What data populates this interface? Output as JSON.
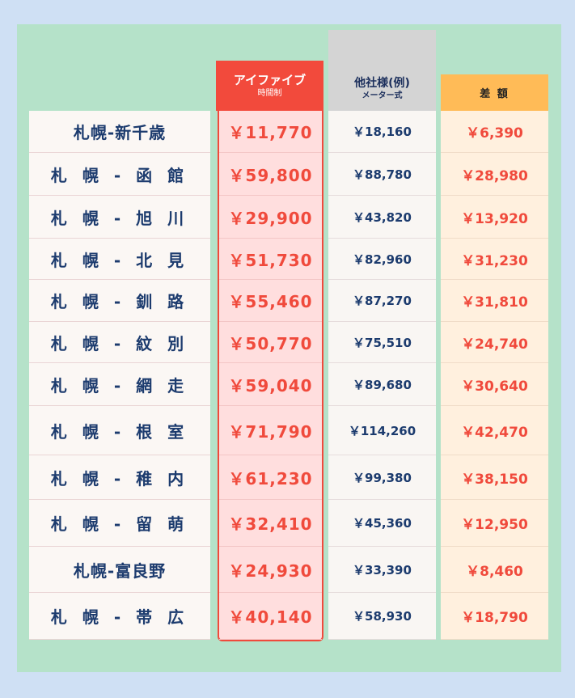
{
  "headers": {
    "aif_title": "アイファイブ",
    "aif_sub": "時間制",
    "other_title": "他社様(例)",
    "other_sub": "メーター式",
    "diff_title": "差 額"
  },
  "rows": [
    {
      "route": "札幌-新千歳",
      "aif": "￥11,770",
      "other": "￥18,160",
      "diff": "￥6,390"
    },
    {
      "route": "札 幌 - 函 館",
      "aif": "￥59,800",
      "other": "￥88,780",
      "diff": "￥28,980"
    },
    {
      "route": "札 幌 - 旭 川",
      "aif": "￥29,900",
      "other": "￥43,820",
      "diff": "￥13,920"
    },
    {
      "route": "札 幌 - 北 見",
      "aif": "￥51,730",
      "other": "￥82,960",
      "diff": "￥31,230"
    },
    {
      "route": "札 幌 - 釧 路",
      "aif": "￥55,460",
      "other": "￥87,270",
      "diff": "￥31,810"
    },
    {
      "route": "札 幌 - 紋 別",
      "aif": "￥50,770",
      "other": "￥75,510",
      "diff": "￥24,740"
    },
    {
      "route": "札 幌 - 網 走",
      "aif": "￥59,040",
      "other": "￥89,680",
      "diff": "￥30,640"
    },
    {
      "route": "札 幌 - 根 室",
      "aif": "￥71,790",
      "other": "￥114,260",
      "diff": "￥42,470"
    },
    {
      "route": "札 幌 - 稚 内",
      "aif": "￥61,230",
      "other": "￥99,380",
      "diff": "￥38,150"
    },
    {
      "route": "札 幌 - 留 萌",
      "aif": "￥32,410",
      "other": "￥45,360",
      "diff": "￥12,950"
    },
    {
      "route": "札幌-富良野",
      "aif": "￥24,930",
      "other": "￥33,390",
      "diff": "￥8,460"
    },
    {
      "route": "札 幌 - 帯 広",
      "aif": "￥40,140",
      "other": "￥58,930",
      "diff": "￥18,790"
    }
  ]
}
